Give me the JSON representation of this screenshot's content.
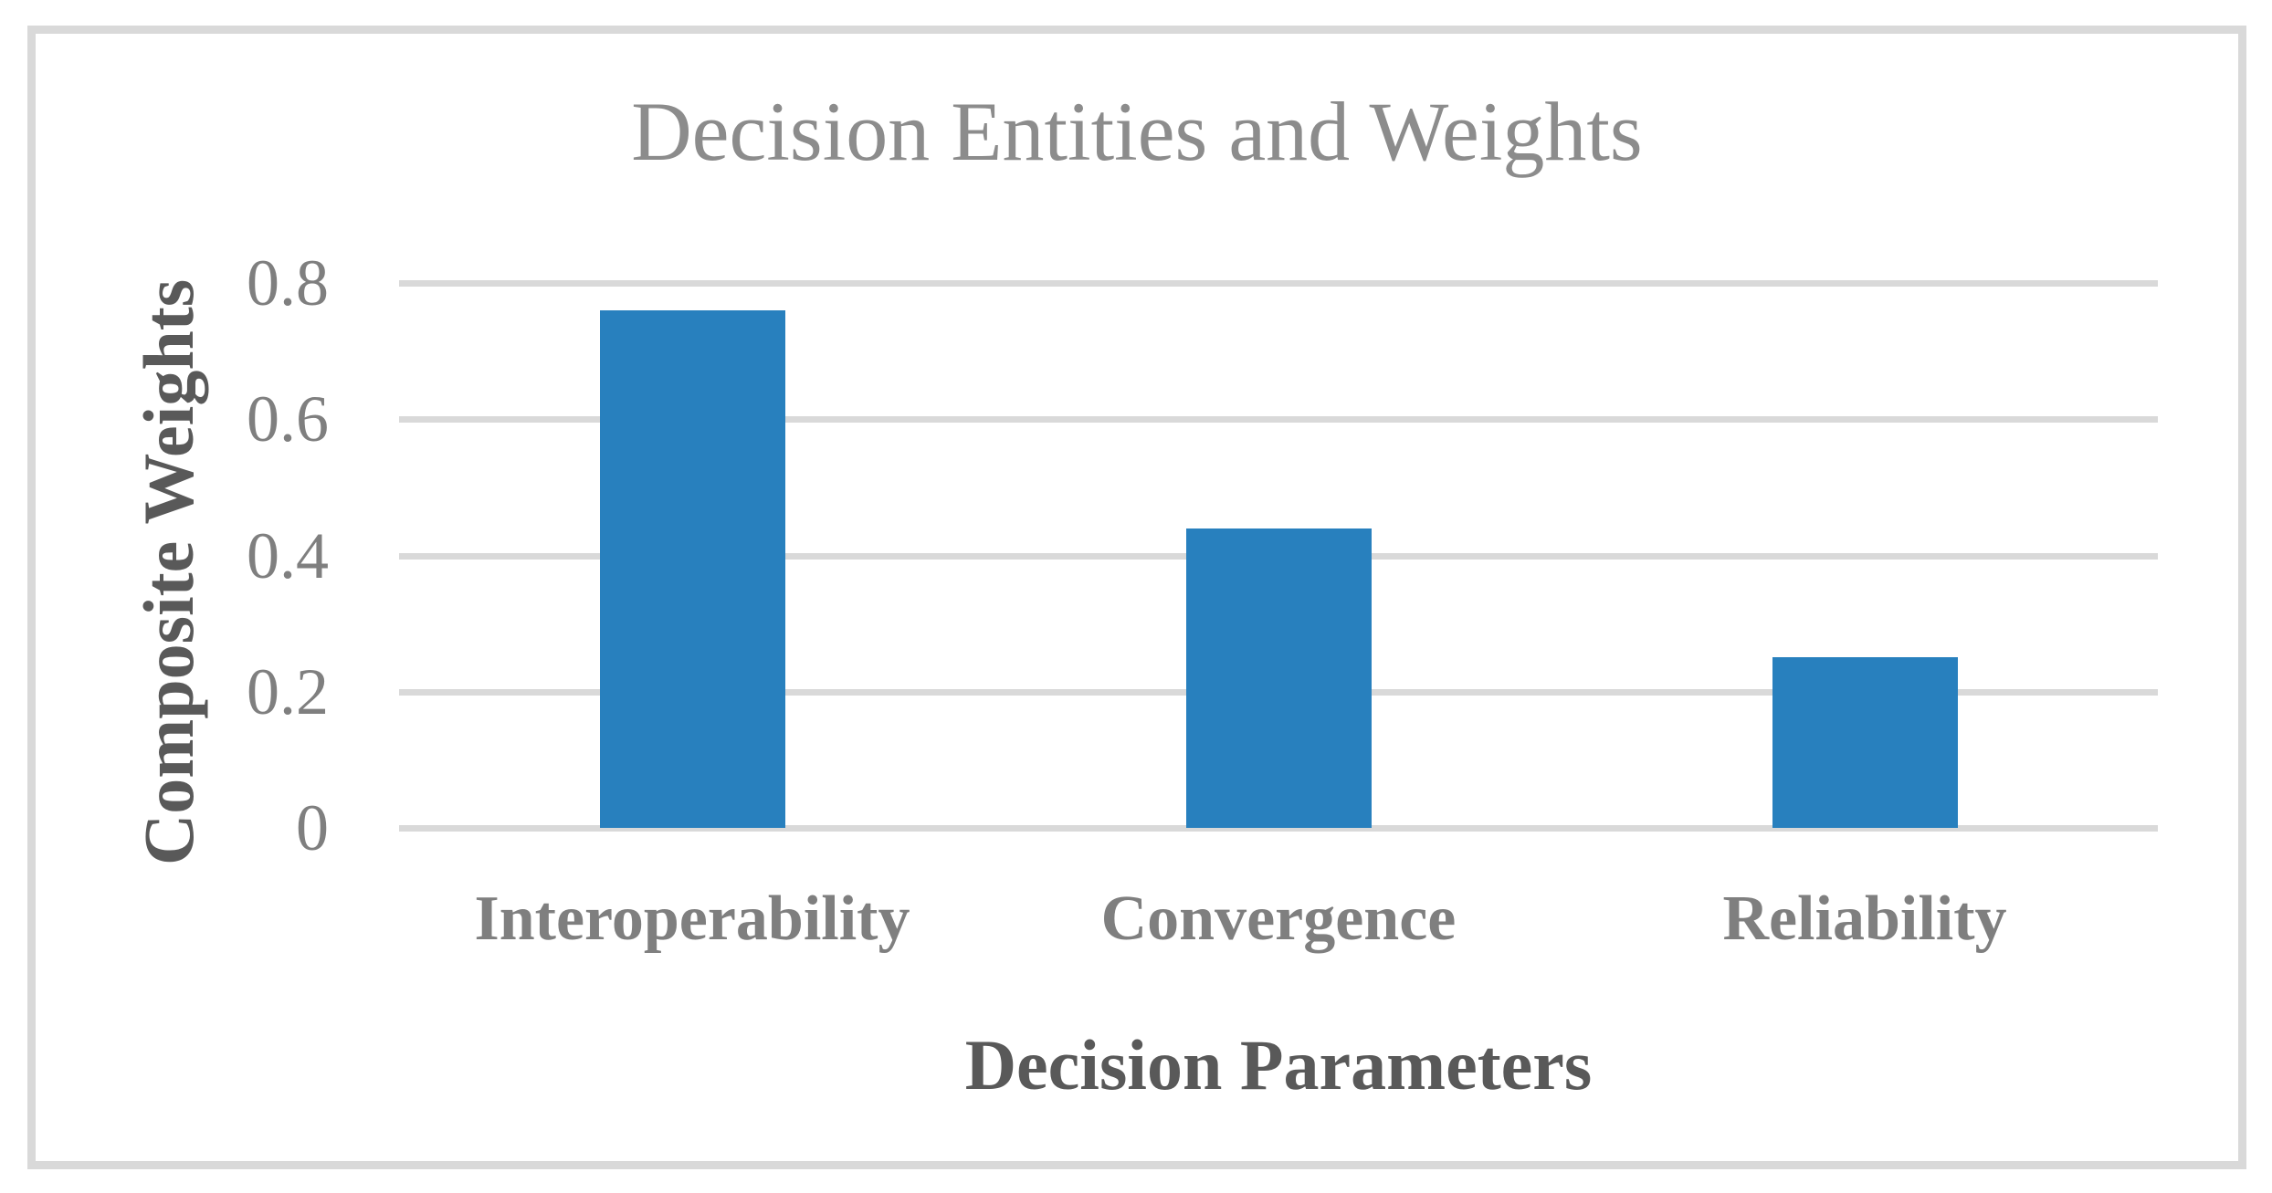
{
  "chart_data": {
    "type": "bar",
    "title": "Decision Entities and Weights",
    "xlabel": "Decision Parameters",
    "ylabel": "Composite Weights",
    "categories": [
      "Interoperability",
      "Convergence",
      "Reliability"
    ],
    "values": [
      0.76,
      0.44,
      0.25
    ],
    "yticks": [
      "0.8",
      "0.6",
      "0.4",
      "0.2",
      "0"
    ],
    "ytick_values": [
      0.8,
      0.6,
      0.4,
      0.2,
      0
    ],
    "ylim": [
      0,
      0.8
    ],
    "grid": "horizontal-major",
    "legend": "none",
    "colors": {
      "bar": "#2880BE",
      "gridline": "#D9D9D9",
      "frame_border": "#D9D9D9",
      "title_text": "#8C8C8C",
      "tick_text": "#7F7F7F",
      "axis_title_text": "#595959",
      "background": "#FFFFFF"
    }
  }
}
